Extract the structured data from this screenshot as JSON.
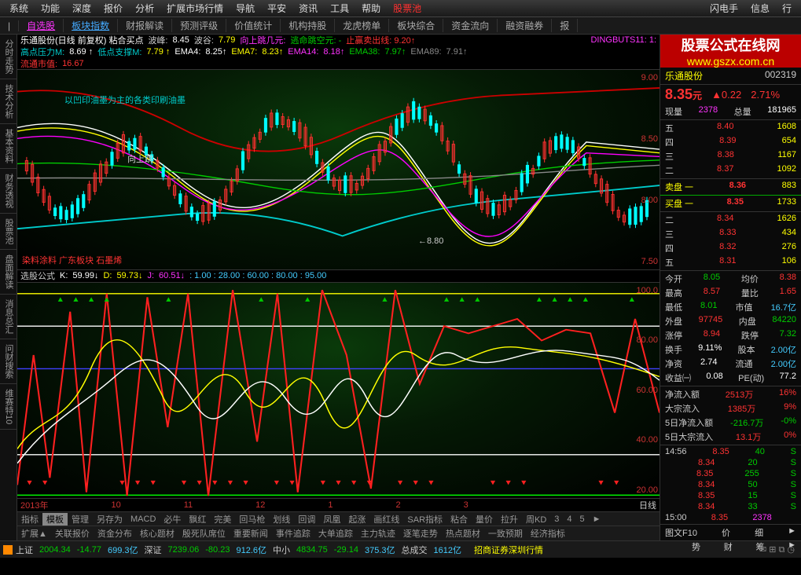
{
  "menu": [
    "系统",
    "功能",
    "深度",
    "报价",
    "分析",
    "扩展市场行情",
    "导航",
    "平安",
    "资讯",
    "工具",
    "帮助"
  ],
  "menu_red": "股票池",
  "menu_right": [
    "闪电手",
    "信息",
    "行"
  ],
  "tabs": {
    "l1": "|",
    "l2": "自选股",
    "l3": "板块指数",
    "items": [
      "财报解读",
      "预测评级",
      "价值统计",
      "机构持股",
      "龙虎榜单",
      "板块综合",
      "资金流向",
      "融资融券",
      "报"
    ]
  },
  "left_tabs": [
    "分时走势",
    "技术分析",
    "基本资料",
    "财务透视",
    "股票池",
    "盘面解读",
    "消息总汇",
    "问财搜索",
    "维赛特10"
  ],
  "watermark": {
    "t1": "股票公式在线网",
    "t2": "www.gszx.com.cn"
  },
  "chart_header": {
    "name": "乐通股份(日线 前复权) 粘合买点",
    "波峰": "8.45",
    "波谷": "7.79",
    "跳几元": "向上跳几元:",
    "逃命": "逃命跳空元: -",
    "止赢": "止赢卖出线: 9.20↑",
    "ding": "DINGBUTS11: 1:",
    "高点压力M": "8.69 ↑",
    "低点支撑M": "7.79 ↑",
    "EMA4": "8.25↑",
    "EMA7": "8.23↑",
    "EMA14": "8.18↑",
    "EMA38": "7.97↑",
    "EMA89": "7.91↑",
    "流通市值": "16.67",
    "annotation": "以凹印油墨为主的各类印刷油墨",
    "向上跳": "向上跳",
    "bottom_label": "染料涂料 广东板块 石墨烯",
    "arrow": "←8.80"
  },
  "price_chart": {
    "type": "candlestick",
    "ylim": [
      7.0,
      9.0
    ],
    "yticks": [
      "9.00",
      "8.50",
      "8.00",
      "7.50"
    ],
    "ema_colors": {
      "4": "#ffffff",
      "7": "#ffff00",
      "14": "#ff00ff",
      "38": "#00cc00",
      "89": "#888888"
    },
    "up_color": "#ff3030",
    "down_color": "#00ffff",
    "resist_color": "#cc0000",
    "support_color": "#00cccc"
  },
  "kdj_header": {
    "name": "选股公式",
    "K": "59.99↓",
    "D": "59.73↓",
    "J": "60.51↓",
    "vals": ": 1.00 : 28.00 : 60.00 : 80.00 : 95.00"
  },
  "kdj_chart": {
    "type": "oscillator",
    "ylim": [
      0,
      100
    ],
    "yticks": [
      "100.0",
      "80.00",
      "60.00",
      "40.00",
      "20.00"
    ],
    "lines": {
      "red": "#ff2020",
      "yellow": "#ffff00",
      "white": "#ffffff"
    },
    "hlines": [
      {
        "y": 95,
        "c": "#ffff00"
      },
      {
        "y": 80,
        "c": "#ffffff"
      },
      {
        "y": 60,
        "c": "#4040ff"
      },
      {
        "y": 20,
        "c": "#ffffff"
      },
      {
        "y": 1,
        "c": "#00ff00"
      }
    ]
  },
  "time_axis": [
    "2013年",
    "10",
    "11",
    "12",
    "1",
    "2",
    "3"
  ],
  "time_right": "日线",
  "ind_row1": [
    "指标",
    "模板",
    "管理",
    "另存为",
    "MACD",
    "必牛",
    "飘红",
    "完美",
    "回马枪",
    "划线",
    "回调",
    "凤凰",
    "起涨",
    "画红线",
    "SAR指标",
    "粘合",
    "量价",
    "拉升",
    "周KD",
    "3",
    "4",
    "5",
    "►"
  ],
  "ind_row2": [
    "扩展▲",
    "关联报价",
    "资金分布",
    "核心题材",
    "殷死队席位",
    "重要新闻",
    "事件追踪",
    "大单追踪",
    "主力轨迹",
    "逐笔走势",
    "热点题材",
    "一致预期",
    "经济指标"
  ],
  "stock": {
    "name": "乐通股份",
    "code": "002319",
    "price": "8.35",
    "chg": "▲0.22",
    "pct": "2.71%"
  },
  "vol_row": {
    "现量": "2378",
    "总量": "181965"
  },
  "asks": [
    [
      "五",
      "8.40",
      "1608"
    ],
    [
      "四",
      "8.39",
      "654"
    ],
    [
      "三",
      "8.38",
      "1167"
    ],
    [
      "二",
      "8.37",
      "1092"
    ]
  ],
  "ask1": [
    "卖盘 一",
    "8.36",
    "883"
  ],
  "bid1": [
    "买盘 一",
    "8.35",
    "1733"
  ],
  "bids": [
    [
      "二",
      "8.34",
      "1626"
    ],
    [
      "三",
      "8.33",
      "434"
    ],
    [
      "四",
      "8.32",
      "276"
    ],
    [
      "五",
      "8.31",
      "106"
    ]
  ],
  "info": [
    [
      "今开",
      "8.05",
      "green",
      "均价",
      "8.38",
      "red"
    ],
    [
      "最高",
      "8.57",
      "red",
      "量比",
      "1.65",
      "red"
    ],
    [
      "最低",
      "8.01",
      "green",
      "市值",
      "16.7亿",
      "cyan"
    ],
    [
      "外盘",
      "97745",
      "red",
      "内盘",
      "84220",
      "green"
    ],
    [
      "涨停",
      "8.94",
      "red",
      "跌停",
      "7.32",
      "green"
    ],
    [
      "换手",
      "9.11%",
      "white",
      "股本",
      "2.00亿",
      "cyan"
    ],
    [
      "净资",
      "2.74",
      "white",
      "流通",
      "2.00亿",
      "cyan"
    ],
    [
      "收益㈠",
      "0.08",
      "white",
      "PE(动)",
      "77.2",
      "white"
    ]
  ],
  "flows": [
    [
      "净流入额",
      "2513万",
      "red",
      "16%"
    ],
    [
      "大宗流入",
      "1385万",
      "red",
      "9%"
    ],
    [
      "5日净流入额",
      "-216.7万",
      "green",
      "-0%"
    ],
    [
      "5日大宗流入",
      "13.1万",
      "red",
      "0%"
    ]
  ],
  "ticks": [
    [
      "14:56",
      "8.35",
      "40",
      "S",
      "green"
    ],
    [
      "",
      "8.34",
      "20",
      "S",
      "green"
    ],
    [
      "",
      "8.35",
      "255",
      "S",
      "green"
    ],
    [
      "",
      "8.34",
      "50",
      "S",
      "green"
    ],
    [
      "",
      "8.35",
      "15",
      "S",
      "green"
    ],
    [
      "",
      "8.34",
      "33",
      "S",
      "green"
    ],
    [
      "15:00",
      "8.35",
      "2378",
      "",
      "magenta"
    ]
  ],
  "rp_tabs": [
    "图文F10",
    "价",
    "细",
    "►"
  ],
  "rp_tabs2": [
    "势",
    "财",
    "筹",
    "►"
  ],
  "status": {
    "上证": [
      "2004.34",
      "-14.77",
      "699.3亿"
    ],
    "深证": [
      "7239.06",
      "-80.23",
      "912.6亿"
    ],
    "中小": [
      "4834.75",
      "-29.14",
      "375.3亿"
    ],
    "总成交": "1612亿",
    "broker": "招商证券深圳行情"
  }
}
